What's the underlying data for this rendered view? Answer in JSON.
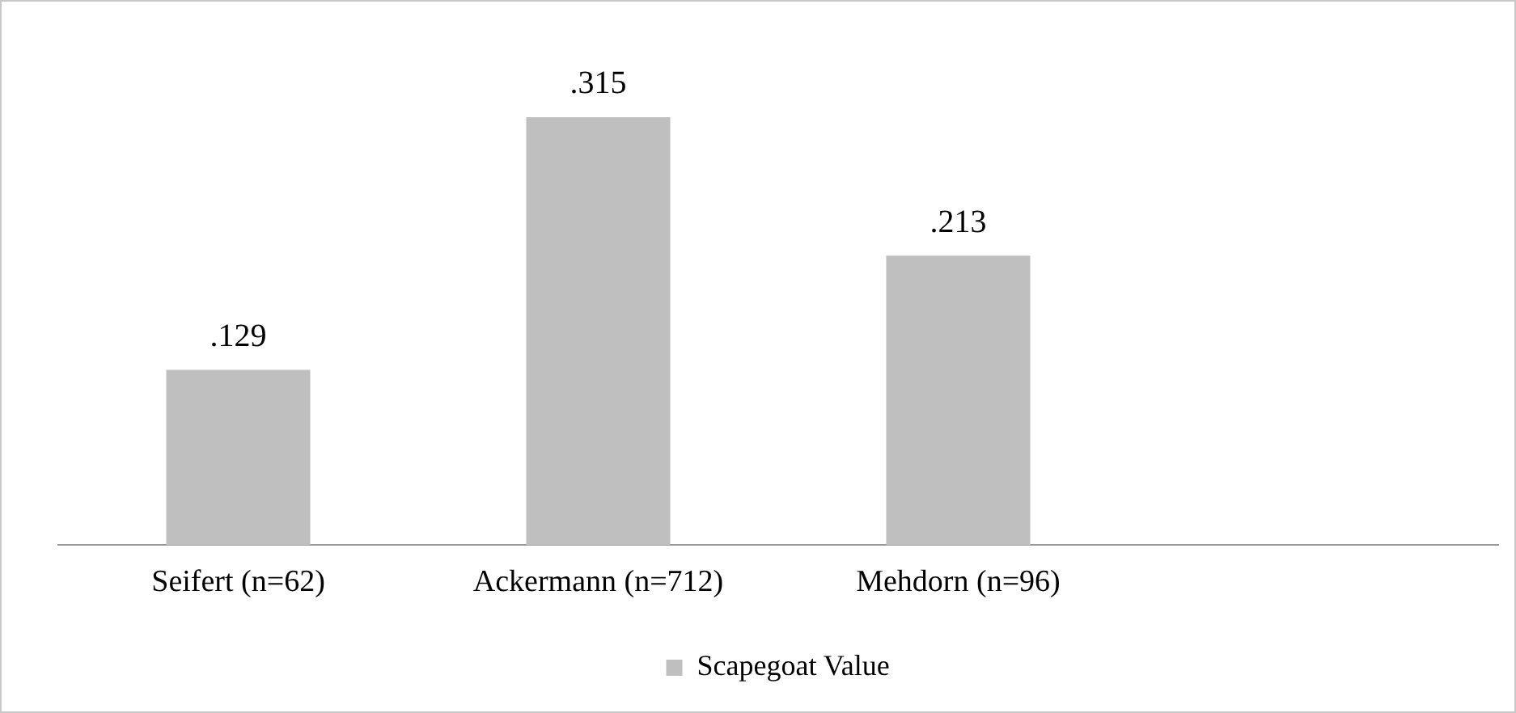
{
  "chart_data": {
    "type": "bar",
    "categories": [
      "Seifert (n=62)",
      "Ackermann (n=712)",
      "Mehdorn (n=96)",
      null
    ],
    "series": [
      {
        "name": "Scapegoat Value",
        "color": "#bfbfbf",
        "values": [
          0.129,
          0.315,
          0.213,
          null
        ],
        "value_labels": [
          ".129",
          ".315",
          ".213",
          null
        ]
      }
    ],
    "legend": "bottom",
    "grid": false
  }
}
